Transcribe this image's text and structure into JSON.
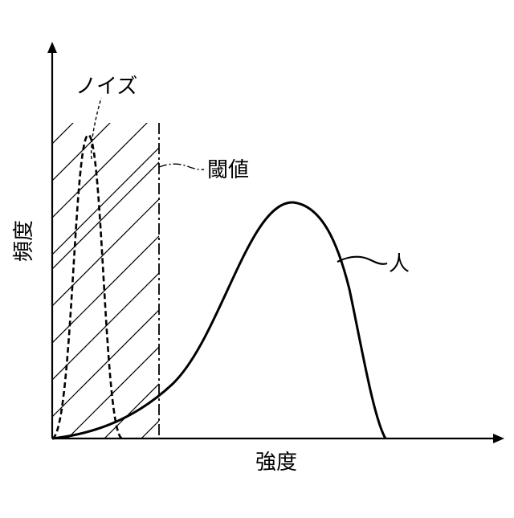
{
  "labels": {
    "noise": "ノイズ",
    "threshold": "閾値",
    "person": "人",
    "y_axis": "頻度",
    "x_axis": "強度"
  }
}
